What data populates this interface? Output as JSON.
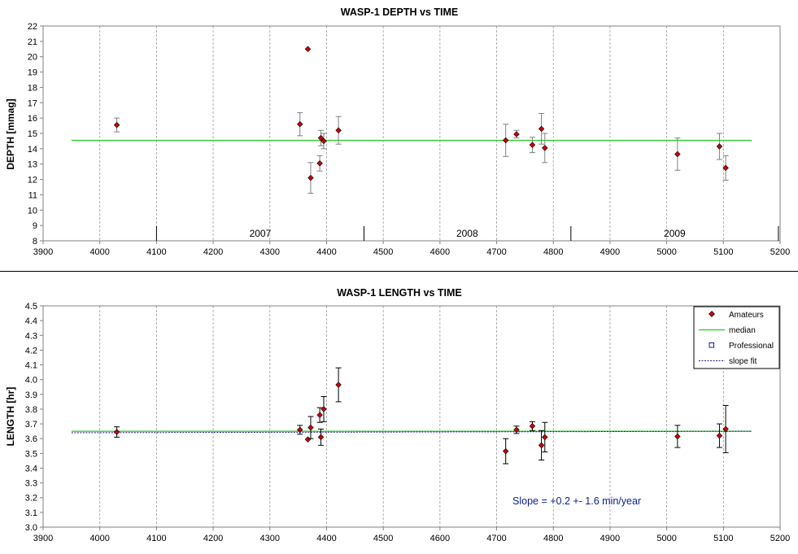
{
  "chart_data": [
    {
      "type": "scatter",
      "title": "WASP-1 DEPTH vs TIME",
      "ylabel": "DEPTH [mmag]",
      "xlabel": "",
      "xlim": [
        3900,
        5200
      ],
      "ylim": [
        8,
        22
      ],
      "x_ticks": [
        3900,
        4000,
        4100,
        4200,
        4300,
        4400,
        4500,
        4600,
        4700,
        4800,
        4900,
        5000,
        5100,
        5200
      ],
      "y_ticks": [
        8,
        9,
        10,
        11,
        12,
        13,
        14,
        15,
        16,
        17,
        18,
        19,
        20,
        21,
        22
      ],
      "grid": "vertical dashed",
      "year_separators": [
        4100,
        4466,
        4831,
        5197
      ],
      "year_labels": [
        {
          "label": "2007",
          "x": 4283
        },
        {
          "label": "2008",
          "x": 4648
        },
        {
          "label": "2009",
          "x": 5014
        }
      ],
      "median": {
        "value": 14.55,
        "x_range": [
          3950,
          5150
        ],
        "color": "#22cc22"
      },
      "series": [
        {
          "marker": "diamond",
          "color": "#cc0000",
          "points": [
            {
              "x": 4030,
              "y": 15.55,
              "err": 0.45
            },
            {
              "x": 4353,
              "y": 15.6,
              "err": 0.75
            },
            {
              "x": 4367,
              "y": 20.5,
              "err": 0
            },
            {
              "x": 4372,
              "y": 12.1,
              "err": 1.0
            },
            {
              "x": 4388,
              "y": 13.05,
              "err": 0.5
            },
            {
              "x": 4390,
              "y": 14.7,
              "err": 0.5
            },
            {
              "x": 4395,
              "y": 14.5,
              "err": 0.5
            },
            {
              "x": 4421,
              "y": 15.2,
              "err": 0.9
            },
            {
              "x": 4716,
              "y": 14.55,
              "err": 1.05
            },
            {
              "x": 4735,
              "y": 14.95,
              "err": 0.25
            },
            {
              "x": 4763,
              "y": 14.25,
              "err": 0.5
            },
            {
              "x": 4779,
              "y": 15.3,
              "err": 1.0
            },
            {
              "x": 4785,
              "y": 14.05,
              "err": 0.95
            },
            {
              "x": 5019,
              "y": 13.65,
              "err": 1.05
            },
            {
              "x": 5093,
              "y": 14.15,
              "err": 0.85
            },
            {
              "x": 5104,
              "y": 12.75,
              "err": 0.8
            }
          ]
        }
      ]
    },
    {
      "type": "scatter",
      "title": "WASP-1 LENGTH vs TIME",
      "ylabel": "LENGTH [hr]",
      "xlabel": "",
      "xlim": [
        3900,
        5200
      ],
      "ylim": [
        3.0,
        4.5
      ],
      "x_ticks": [
        3900,
        4000,
        4100,
        4200,
        4300,
        4400,
        4500,
        4600,
        4700,
        4800,
        4900,
        5000,
        5100,
        5200
      ],
      "y_ticks": [
        "3.0",
        "3.1",
        "3.2",
        "3.3",
        "3.4",
        "3.5",
        "3.6",
        "3.7",
        "3.8",
        "3.9",
        "4.0",
        "4.1",
        "4.2",
        "4.3",
        "4.4",
        "4.5"
      ],
      "grid": "vertical dashed",
      "legend_position": "top-right",
      "median": {
        "value": 3.65,
        "x_range": [
          3950,
          5150
        ],
        "color": "#22cc22"
      },
      "slope_fit": {
        "x_range": [
          3950,
          5150
        ],
        "y_range": [
          3.64,
          3.65
        ],
        "color": "#1a1a80"
      },
      "annotation": "Slope = +0.2 +- 1.6 min/year",
      "annotation_at": {
        "x": 4722,
        "y": 3.185
      },
      "legend": [
        {
          "label": "Amateurs",
          "symbol": "diamond",
          "color": "#cc0000"
        },
        {
          "label": "median",
          "symbol": "line",
          "color": "#22cc22"
        },
        {
          "label": "Professional",
          "symbol": "square",
          "color": "#1a1a9a"
        },
        {
          "label": "slope fit",
          "symbol": "dashed",
          "color": "#1a1a80"
        }
      ],
      "series": [
        {
          "name": "Amateurs",
          "marker": "diamond",
          "color": "#cc0000",
          "points": [
            {
              "x": 4030,
              "y": 3.645,
              "err": 0.035
            },
            {
              "x": 4353,
              "y": 3.66,
              "err": 0.03
            },
            {
              "x": 4367,
              "y": 3.595,
              "err": 0
            },
            {
              "x": 4372,
              "y": 3.675,
              "err": 0.075
            },
            {
              "x": 4388,
              "y": 3.76,
              "err": 0.05
            },
            {
              "x": 4390,
              "y": 3.61,
              "err": 0.055
            },
            {
              "x": 4395,
              "y": 3.8,
              "err": 0.085
            },
            {
              "x": 4421,
              "y": 3.965,
              "err": 0.115
            },
            {
              "x": 4716,
              "y": 3.515,
              "err": 0.085
            },
            {
              "x": 4735,
              "y": 3.66,
              "err": 0.025
            },
            {
              "x": 4763,
              "y": 3.685,
              "err": 0.03
            },
            {
              "x": 4779,
              "y": 3.555,
              "err": 0.1
            },
            {
              "x": 4785,
              "y": 3.61,
              "err": 0.1
            },
            {
              "x": 5019,
              "y": 3.615,
              "err": 0.075
            },
            {
              "x": 5093,
              "y": 3.62,
              "err": 0.08
            },
            {
              "x": 5104,
              "y": 3.665,
              "err": 0.16
            }
          ]
        }
      ]
    }
  ]
}
